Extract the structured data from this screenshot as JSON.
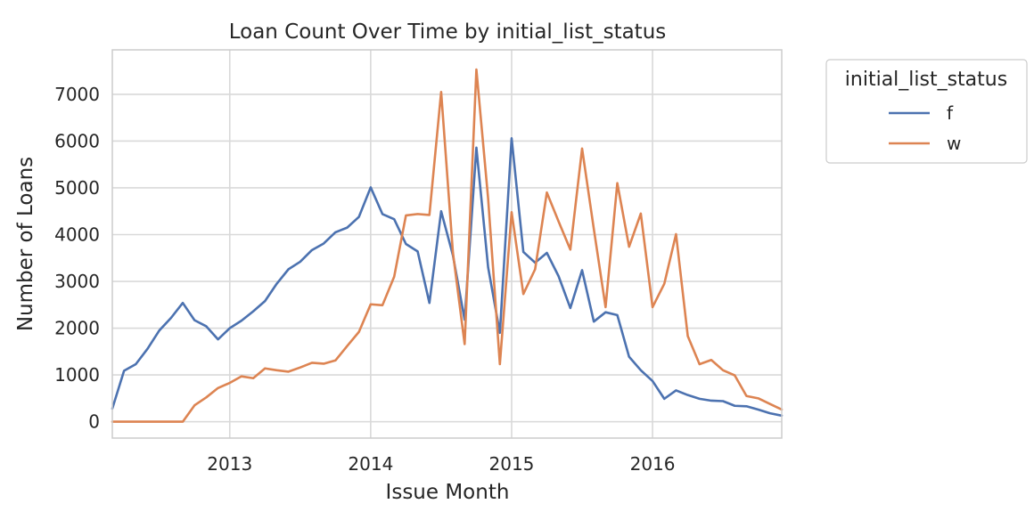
{
  "chart_data": {
    "type": "line",
    "title": "Loan Count Over Time by initial_list_status",
    "xlabel": "Issue Month",
    "ylabel": "Number of Loans",
    "x_start": "2012-03",
    "x_end": "2016-12",
    "xlim": [
      "2012-03",
      "2016-12"
    ],
    "ylim": [
      -350,
      7950
    ],
    "x_ticks": [
      {
        "date": "2013-01",
        "label": "2013"
      },
      {
        "date": "2014-01",
        "label": "2014"
      },
      {
        "date": "2015-01",
        "label": "2015"
      },
      {
        "date": "2016-01",
        "label": "2016"
      }
    ],
    "y_ticks": [
      {
        "value": 0,
        "label": "0"
      },
      {
        "value": 1000,
        "label": "1000"
      },
      {
        "value": 2000,
        "label": "2000"
      },
      {
        "value": 3000,
        "label": "3000"
      },
      {
        "value": 4000,
        "label": "4000"
      },
      {
        "value": 5000,
        "label": "5000"
      },
      {
        "value": 6000,
        "label": "6000"
      },
      {
        "value": 7000,
        "label": "7000"
      }
    ],
    "grid": true,
    "legend": {
      "title": "initial_list_status",
      "placement": "outside-top-right"
    },
    "series": [
      {
        "name": "f",
        "color": "#4c72b0",
        "values": [
          280,
          1090,
          1230,
          1560,
          1950,
          2220,
          2540,
          2170,
          2040,
          1760,
          2000,
          2160,
          2360,
          2580,
          2950,
          3260,
          3420,
          3670,
          3810,
          4050,
          4150,
          4380,
          5010,
          4440,
          4330,
          3800,
          3640,
          2540,
          4500,
          3560,
          2180,
          5860,
          3300,
          1900,
          6060,
          3630,
          3400,
          3610,
          3110,
          2430,
          3240,
          2140,
          2340,
          2280,
          1390,
          1100,
          870,
          490,
          670,
          570,
          490,
          450,
          440,
          340,
          330,
          260,
          180,
          130
        ]
      },
      {
        "name": "w",
        "color": "#dd8452",
        "values": [
          0,
          0,
          0,
          0,
          0,
          0,
          0,
          350,
          520,
          720,
          830,
          970,
          930,
          1140,
          1100,
          1070,
          1160,
          1260,
          1240,
          1310,
          1620,
          1920,
          2510,
          2490,
          3100,
          4410,
          4440,
          4420,
          7050,
          3620,
          1660,
          7530,
          4770,
          1230,
          4480,
          2730,
          3260,
          4900,
          4280,
          3680,
          5840,
          4120,
          2450,
          5100,
          3740,
          4450,
          2450,
          2950,
          4010,
          1830,
          1230,
          1320,
          1100,
          990,
          550,
          500,
          380,
          260
        ]
      }
    ]
  }
}
